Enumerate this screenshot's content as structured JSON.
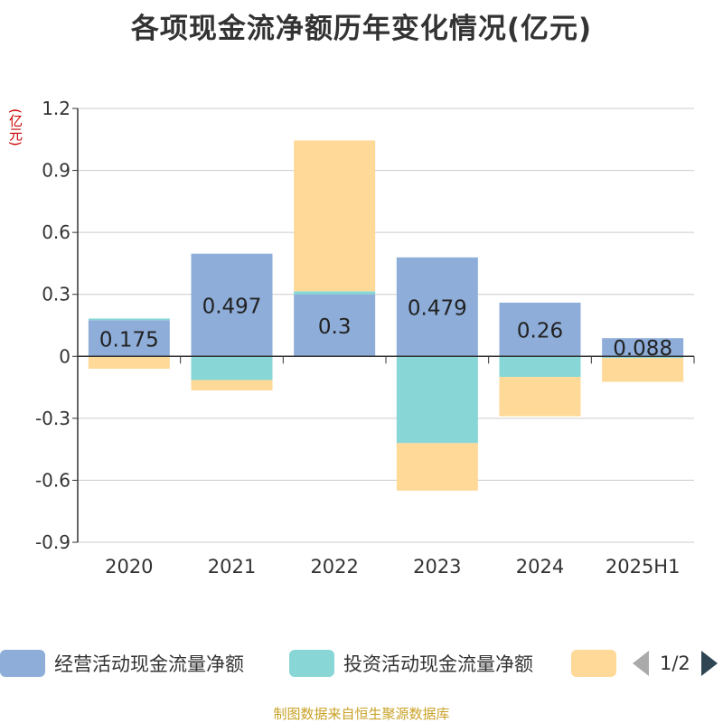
{
  "title": "各项现金流净额历年变化情况(亿元)",
  "unit_label": "(亿元)",
  "source": "制图数据来自恒生聚源数据库",
  "legend": {
    "items": [
      {
        "label": "经营活动现金流量净额",
        "color": "#8eadd9"
      },
      {
        "label": "投资活动现金流量净额",
        "color": "#88d6d6"
      },
      {
        "label": "",
        "color": "#fed998"
      }
    ],
    "page_text": "1/2"
  },
  "chart_data": {
    "type": "bar",
    "stacked": true,
    "categories": [
      "2020",
      "2021",
      "2022",
      "2023",
      "2024",
      "2025H1"
    ],
    "series": [
      {
        "name": "经营活动现金流量净额",
        "color": "#8eadd9",
        "values": [
          0.175,
          0.497,
          0.3,
          0.479,
          0.26,
          0.088
        ],
        "show_labels": true
      },
      {
        "name": "投资活动现金流量净额",
        "color": "#88d6d6",
        "values": [
          0.008,
          -0.115,
          0.015,
          -0.42,
          -0.1,
          -0.008
        ],
        "show_labels": false
      },
      {
        "color": "#fed998",
        "values": [
          -0.06,
          -0.05,
          0.73,
          -0.23,
          -0.19,
          -0.115
        ],
        "show_labels": false
      }
    ],
    "yticks": [
      "1.2",
      "0.9",
      "0.6",
      "0.3",
      "0",
      "-0.3",
      "-0.6",
      "-0.9"
    ],
    "ylim": [
      -0.9,
      1.2
    ],
    "grid": true,
    "legend_position": "bottom"
  }
}
